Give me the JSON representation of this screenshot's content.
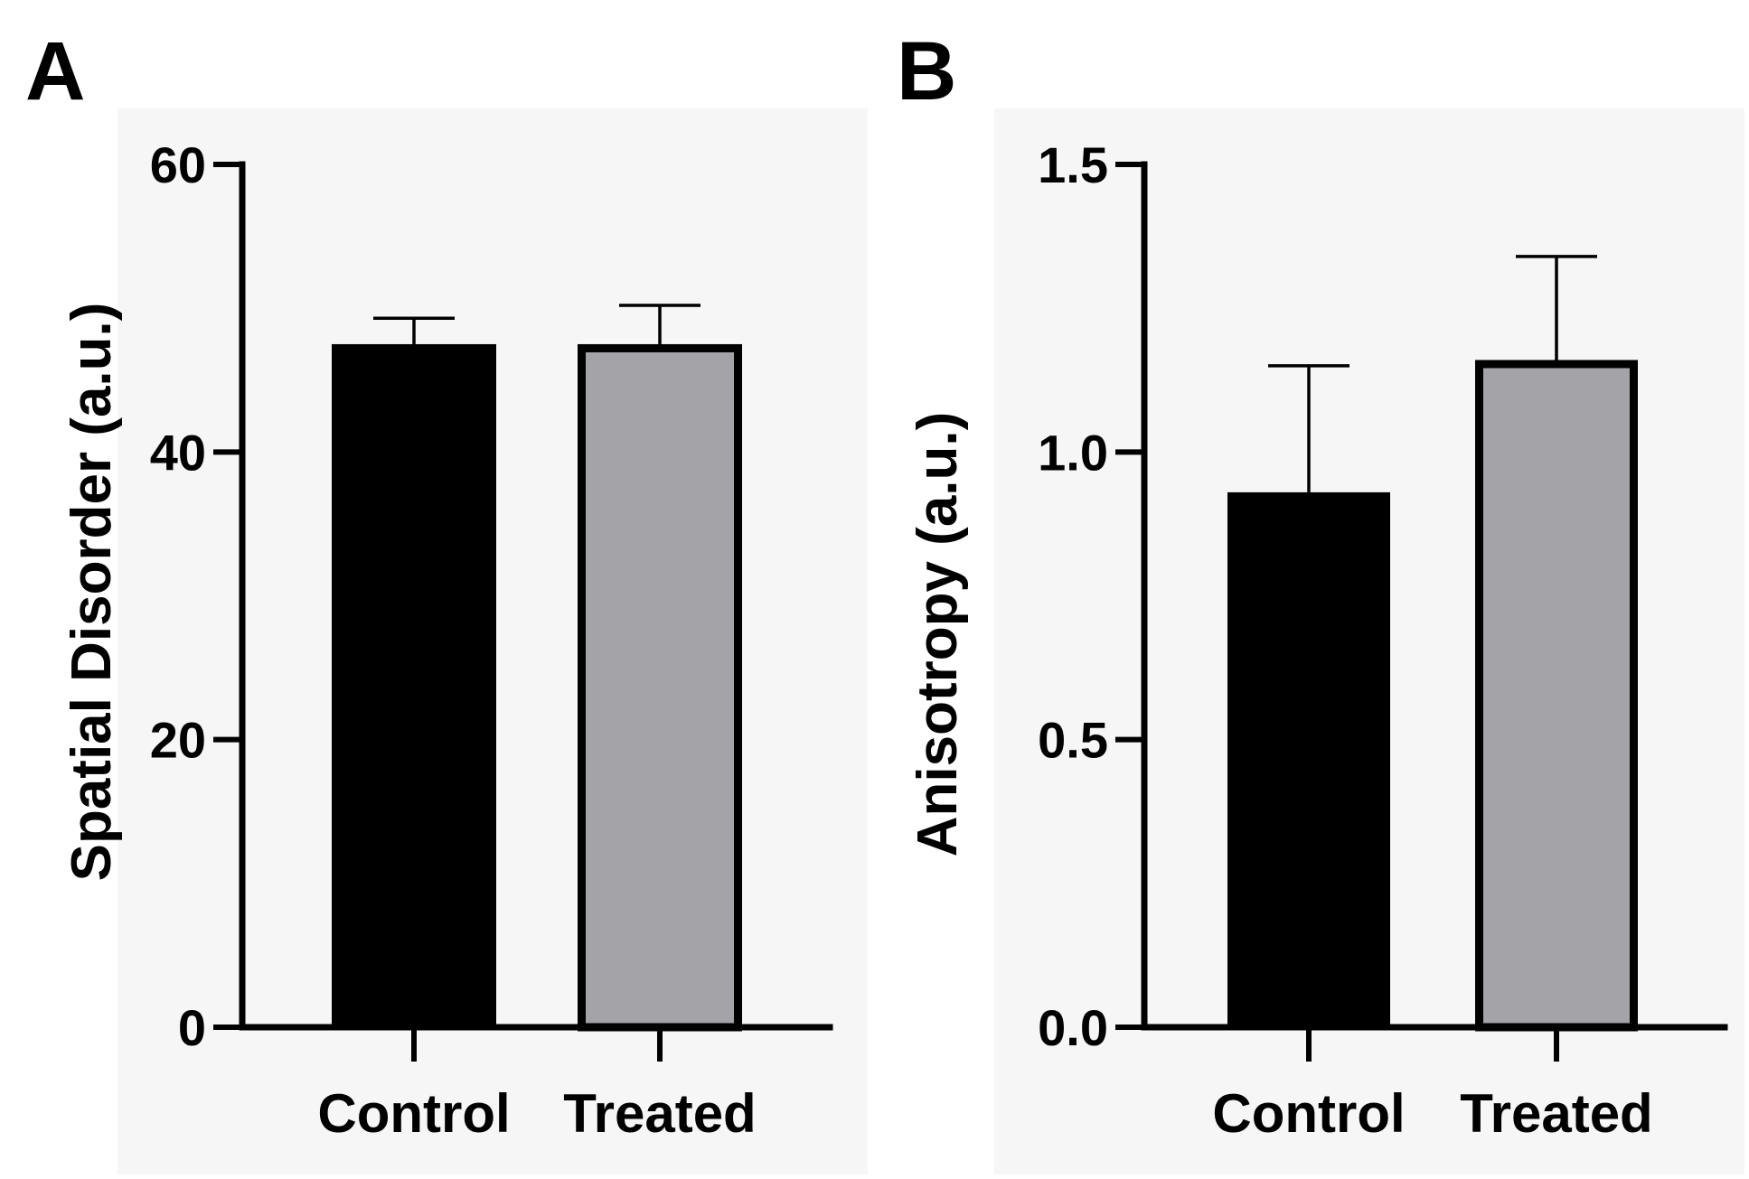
{
  "chart_data": [
    {
      "type": "bar",
      "panel_label": "A",
      "categories": [
        "Control",
        "Treated"
      ],
      "values": [
        47.5,
        47.5
      ],
      "errors": [
        1.8,
        2.7
      ],
      "ylabel": "Spatial Disorder (a.u.)",
      "xlabel": "",
      "ylim": [
        0,
        60
      ],
      "yticks": [
        0,
        20,
        40,
        60
      ],
      "ytick_labels": [
        "0",
        "20",
        "40",
        "60"
      ],
      "bar_colors": [
        "#000000",
        "#a4a3a8"
      ],
      "grid": false,
      "legend": "none"
    },
    {
      "type": "bar",
      "panel_label": "B",
      "categories": [
        "Control",
        "Treated"
      ],
      "values": [
        0.93,
        1.16
      ],
      "errors": [
        0.22,
        0.18
      ],
      "ylabel": "Anisotropy (a.u.)",
      "xlabel": "",
      "ylim": [
        0,
        1.5
      ],
      "yticks": [
        0.0,
        0.5,
        1.0,
        1.5
      ],
      "ytick_labels": [
        "0.0",
        "0.5",
        "1.0",
        "1.5"
      ],
      "bar_colors": [
        "#000000",
        "#a4a3a8"
      ],
      "grid": false,
      "legend": "none"
    }
  ]
}
